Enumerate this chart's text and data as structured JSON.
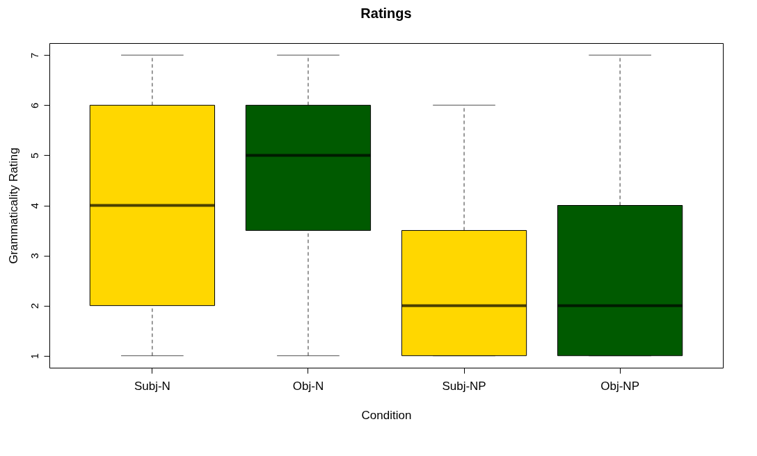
{
  "chart_data": {
    "type": "box",
    "title": "Ratings",
    "xlabel": "Condition",
    "ylabel": "Grammaticality Rating",
    "categories": [
      "Subj-N",
      "Obj-N",
      "Subj-NP",
      "Obj-NP"
    ],
    "boxes": [
      {
        "low": 1,
        "q1": 2,
        "median": 4,
        "q3": 6,
        "high": 7
      },
      {
        "low": 1,
        "q1": 3.5,
        "median": 5,
        "q3": 6,
        "high": 7
      },
      {
        "low": 1,
        "q1": 1,
        "median": 2,
        "q3": 3.5,
        "high": 6
      },
      {
        "low": 1,
        "q1": 1,
        "median": 2,
        "q3": 4,
        "high": 7
      }
    ],
    "colors": [
      "#ffd700",
      "#005a00",
      "#ffd700",
      "#005a00"
    ],
    "ylim": [
      0.76,
      7.24
    ],
    "yticks": [
      1,
      2,
      3,
      4,
      5,
      6,
      7
    ]
  }
}
